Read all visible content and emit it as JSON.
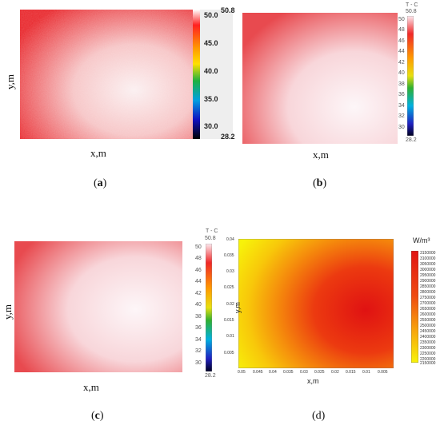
{
  "chart_data": [
    {
      "type": "heatmap",
      "panel": "(a)",
      "xlabel": "x,m",
      "ylabel": "y,m",
      "colorbar": {
        "min_label": "28.2",
        "max_label": "50.8",
        "ticks": [
          "50.0",
          "45.0",
          "40.0",
          "35.0",
          "30.0"
        ]
      },
      "colors": {
        "edge": "#e8252a",
        "center": "#fbe9ea"
      }
    },
    {
      "type": "heatmap",
      "panel": "(b)",
      "xlabel": "x,m",
      "ylabel": "",
      "colorbar": {
        "title": "T - C",
        "min_label": "28.2",
        "max_label": "50.8",
        "ticks": [
          "50",
          "48",
          "46",
          "44",
          "42",
          "40",
          "38",
          "36",
          "34",
          "32",
          "30"
        ]
      },
      "colors": {
        "edge": "#e84a4f",
        "center": "#fdf4f6"
      }
    },
    {
      "type": "heatmap",
      "panel": "(c)",
      "xlabel": "x,m",
      "ylabel": "y,m",
      "colorbar": {
        "title": "T - C",
        "min_label": "28.2",
        "max_label": "50.8",
        "ticks": [
          "50",
          "48",
          "46",
          "44",
          "42",
          "40",
          "38",
          "36",
          "34",
          "32",
          "30"
        ]
      },
      "colors": {
        "edge": "#e84a4f",
        "center": "#fdf4f6"
      }
    },
    {
      "type": "heatmap",
      "panel": "(d)",
      "xlabel": "x,m",
      "ylabel": "y,m",
      "unit": "W/m³",
      "x_ticks": [
        "0.05",
        "0.045",
        "0.04",
        "0.035",
        "0.03",
        "0.025",
        "0.02",
        "0.015",
        "0.01",
        "0.005"
      ],
      "y_ticks": [
        "0.04",
        "0.035",
        "0.03",
        "0.025",
        "0.02",
        "0.015",
        "0.01",
        "0.005"
      ],
      "colorbar": {
        "ticks": [
          "3150000",
          "3100000",
          "3050000",
          "3000000",
          "2950000",
          "2900000",
          "2850000",
          "2800000",
          "2750000",
          "2700000",
          "2650000",
          "2600000",
          "2550000",
          "2500000",
          "2450000",
          "2400000",
          "2350000",
          "2300000",
          "2250000",
          "2200000",
          "2150000"
        ]
      },
      "colors": {
        "low": "#f7f20a",
        "high": "#e11414"
      }
    }
  ],
  "panel_labels": {
    "a": "a",
    "b": "b",
    "c": "c",
    "d": "(d)"
  }
}
